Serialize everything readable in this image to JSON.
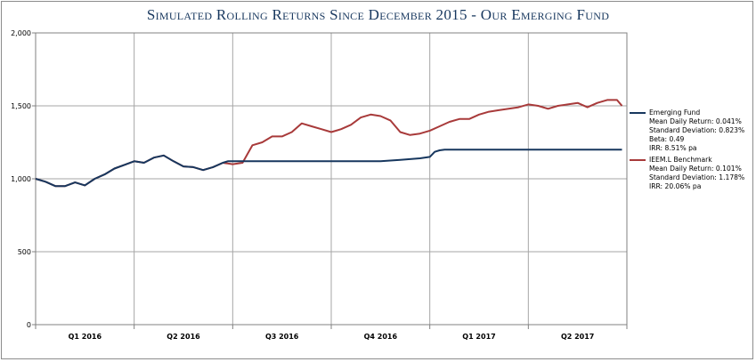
{
  "title": "Simulated Rolling Returns Since December 2015 - Our Emerging Fund",
  "colors": {
    "fund": "#17375e",
    "benchmark": "#a83a3a",
    "grid": "#a6a6a6",
    "axis": "#808080"
  },
  "legend": {
    "fund": {
      "name": "Emerging Fund",
      "lines": [
        "Mean Daily Return: 0.041%",
        "Standard Deviation: 0.823%",
        "Beta: 0.49",
        "IRR: 8.51% pa"
      ]
    },
    "benchmark": {
      "name": "IEEM.L Benchmark",
      "lines": [
        "Mean Daily Return: 0.101%",
        "Standard Deviation: 1.178%",
        "IRR: 20.06% pa"
      ]
    }
  },
  "chart_data": {
    "type": "line",
    "title": "Simulated Rolling Returns Since December 2015 - Our Emerging Fund",
    "xlabel": "",
    "ylabel": "",
    "ylim": [
      0,
      2000
    ],
    "xlim": [
      0,
      6
    ],
    "yticks": [
      0,
      500,
      1000,
      1500,
      2000
    ],
    "ytick_labels": [
      "0",
      "500",
      "1,000",
      "1,500",
      "2,000"
    ],
    "quarters": [
      "Q1 2016",
      "Q2 2016",
      "Q3 2016",
      "Q4 2016",
      "Q1 2017",
      "Q2 2017"
    ],
    "grid": true,
    "legend_position": "right",
    "series": [
      {
        "name": "Emerging Fund",
        "color": "#17375e",
        "points": [
          [
            0,
            1000
          ],
          [
            0.1,
            980
          ],
          [
            0.2,
            950
          ],
          [
            0.3,
            950
          ],
          [
            0.4,
            975
          ],
          [
            0.5,
            955
          ],
          [
            0.6,
            1000
          ],
          [
            0.7,
            1030
          ],
          [
            0.8,
            1070
          ],
          [
            0.9,
            1095
          ],
          [
            1.0,
            1120
          ],
          [
            1.1,
            1110
          ],
          [
            1.2,
            1145
          ],
          [
            1.3,
            1160
          ],
          [
            1.4,
            1120
          ],
          [
            1.5,
            1085
          ],
          [
            1.6,
            1080
          ],
          [
            1.7,
            1060
          ],
          [
            1.8,
            1080
          ],
          [
            1.9,
            1110
          ],
          [
            1.95,
            1120
          ],
          [
            2.0,
            1120
          ],
          [
            2.5,
            1120
          ],
          [
            3.0,
            1120
          ],
          [
            3.5,
            1120
          ],
          [
            3.6,
            1125
          ],
          [
            3.7,
            1130
          ],
          [
            3.8,
            1135
          ],
          [
            3.9,
            1140
          ],
          [
            4.0,
            1150
          ],
          [
            4.05,
            1185
          ],
          [
            4.1,
            1195
          ],
          [
            4.15,
            1200
          ],
          [
            4.5,
            1200
          ],
          [
            5.0,
            1200
          ],
          [
            5.5,
            1200
          ],
          [
            5.95,
            1200
          ]
        ]
      },
      {
        "name": "IEEM.L Benchmark",
        "color": "#a83a3a",
        "points": [
          [
            0,
            1000
          ],
          [
            0.1,
            980
          ],
          [
            0.2,
            950
          ],
          [
            0.3,
            950
          ],
          [
            0.4,
            975
          ],
          [
            0.5,
            955
          ],
          [
            0.6,
            1000
          ],
          [
            0.7,
            1030
          ],
          [
            0.8,
            1070
          ],
          [
            0.9,
            1095
          ],
          [
            1.0,
            1120
          ],
          [
            1.1,
            1110
          ],
          [
            1.2,
            1145
          ],
          [
            1.3,
            1160
          ],
          [
            1.4,
            1120
          ],
          [
            1.5,
            1085
          ],
          [
            1.6,
            1080
          ],
          [
            1.7,
            1060
          ],
          [
            1.8,
            1080
          ],
          [
            1.9,
            1110
          ],
          [
            2.0,
            1100
          ],
          [
            2.1,
            1110
          ],
          [
            2.2,
            1230
          ],
          [
            2.3,
            1250
          ],
          [
            2.4,
            1290
          ],
          [
            2.5,
            1290
          ],
          [
            2.6,
            1320
          ],
          [
            2.7,
            1380
          ],
          [
            2.8,
            1360
          ],
          [
            2.9,
            1340
          ],
          [
            3.0,
            1320
          ],
          [
            3.1,
            1340
          ],
          [
            3.2,
            1370
          ],
          [
            3.3,
            1420
          ],
          [
            3.4,
            1440
          ],
          [
            3.5,
            1430
          ],
          [
            3.6,
            1400
          ],
          [
            3.7,
            1320
          ],
          [
            3.8,
            1300
          ],
          [
            3.9,
            1310
          ],
          [
            4.0,
            1330
          ],
          [
            4.1,
            1360
          ],
          [
            4.2,
            1390
          ],
          [
            4.3,
            1410
          ],
          [
            4.4,
            1410
          ],
          [
            4.5,
            1440
          ],
          [
            4.6,
            1460
          ],
          [
            4.7,
            1470
          ],
          [
            4.8,
            1480
          ],
          [
            4.9,
            1490
          ],
          [
            5.0,
            1510
          ],
          [
            5.1,
            1500
          ],
          [
            5.2,
            1480
          ],
          [
            5.3,
            1500
          ],
          [
            5.4,
            1510
          ],
          [
            5.5,
            1520
          ],
          [
            5.6,
            1490
          ],
          [
            5.7,
            1520
          ],
          [
            5.8,
            1540
          ],
          [
            5.9,
            1540
          ],
          [
            5.95,
            1500
          ]
        ]
      }
    ]
  }
}
